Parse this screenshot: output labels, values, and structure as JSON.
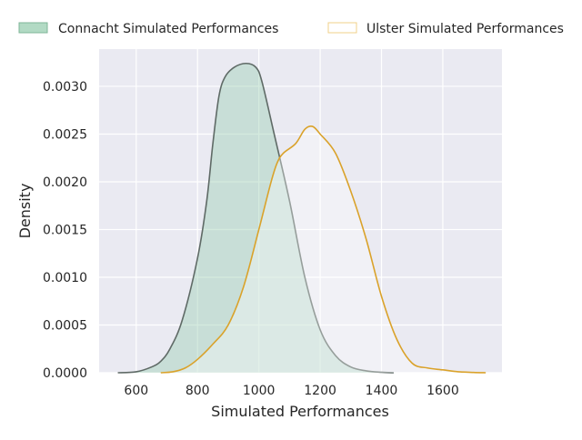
{
  "chart_data": {
    "type": "area",
    "title": "",
    "xlabel": "Simulated Performances",
    "ylabel": "Density",
    "xlim": [
      479,
      1793
    ],
    "ylim": [
      0,
      0.00339
    ],
    "xticks": [
      600,
      800,
      1000,
      1200,
      1400,
      1600
    ],
    "xtick_labels": [
      "600",
      "800",
      "1000",
      "1200",
      "1400",
      "1600"
    ],
    "yticks": [
      0,
      0.0005,
      0.001,
      0.0015,
      0.002,
      0.0025,
      0.003
    ],
    "ytick_labels": [
      "0.0000",
      "0.0005",
      "0.0010",
      "0.0015",
      "0.0020",
      "0.0025",
      "0.0030"
    ],
    "grid": true,
    "legend_position": "top",
    "series": [
      {
        "name": "Connacht Simulated Performances",
        "line_color": "#5f6a66",
        "fill_color": "#9fd1b5",
        "x": [
          540,
          600,
          650,
          680,
          710,
          750,
          800,
          830,
          850,
          870,
          890,
          920,
          958,
          990,
          1010,
          1050,
          1100,
          1150,
          1200,
          1250,
          1300,
          1350,
          1400,
          1440
        ],
        "y": [
          0,
          1e-05,
          6e-05,
          0.00012,
          0.00025,
          0.00055,
          0.0012,
          0.0018,
          0.0024,
          0.0029,
          0.0031,
          0.0032,
          0.00324,
          0.0032,
          0.00305,
          0.0025,
          0.0018,
          0.001,
          0.00045,
          0.00018,
          6e-05,
          2e-05,
          5e-06,
          0
        ]
      },
      {
        "name": "Ulster Simulated Performances",
        "line_color": "#daa22a",
        "fill_color": "#ffffff",
        "x": [
          680,
          720,
          760,
          800,
          850,
          900,
          950,
          1000,
          1040,
          1060,
          1080,
          1120,
          1150,
          1175,
          1200,
          1250,
          1300,
          1350,
          1400,
          1450,
          1500,
          1550,
          1600,
          1650,
          1700,
          1740
        ],
        "y": [
          0,
          1e-05,
          5e-05,
          0.00014,
          0.0003,
          0.0005,
          0.0009,
          0.0015,
          0.002,
          0.0022,
          0.0023,
          0.0024,
          0.00255,
          0.00258,
          0.0025,
          0.0023,
          0.0019,
          0.0014,
          0.0008,
          0.00035,
          0.0001,
          5e-05,
          3e-05,
          1e-05,
          3e-06,
          0
        ]
      }
    ]
  }
}
